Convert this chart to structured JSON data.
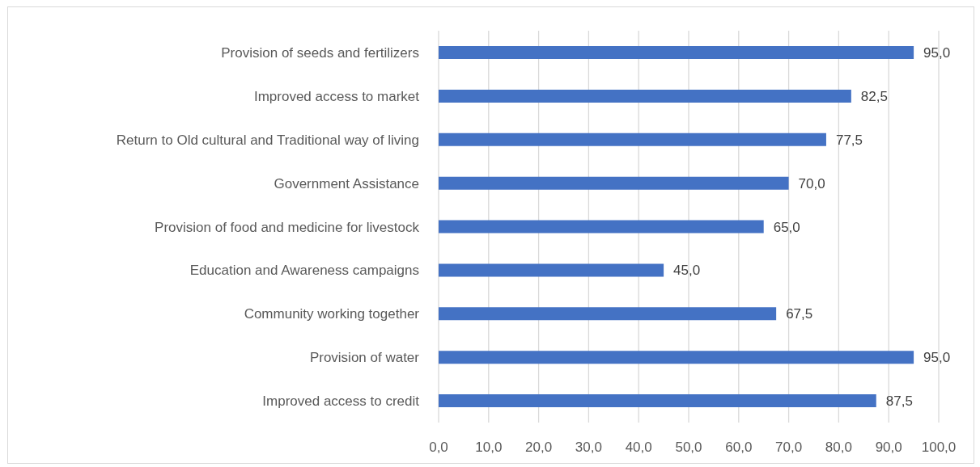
{
  "chart_data": {
    "type": "bar",
    "orientation": "horizontal",
    "categories": [
      "Provision of seeds and fertilizers",
      "Improved access to market",
      "Return to Old cultural and Traditional way of living",
      "Government Assistance",
      "Provision of food and medicine for livestock",
      "Education and Awareness campaigns",
      "Community working together",
      "Provision of water",
      "Improved access to credit"
    ],
    "values": [
      95,
      82.5,
      77.5,
      70,
      65,
      45,
      67.5,
      95,
      87.5
    ],
    "value_labels": [
      "95,0",
      "82,5",
      "77,5",
      "70,0",
      "65,0",
      "45,0",
      "67,5",
      "95,0",
      "87,5"
    ],
    "color": "#4472c4",
    "xlim": [
      0,
      100
    ],
    "xticks": [
      {
        "value": 0,
        "label": "0,0"
      },
      {
        "value": 10,
        "label": "10,0"
      },
      {
        "value": 20,
        "label": "20,0"
      },
      {
        "value": 30,
        "label": "30,0"
      },
      {
        "value": 40,
        "label": "40,0"
      },
      {
        "value": 50,
        "label": "50,0"
      },
      {
        "value": 60,
        "label": "60,0"
      },
      {
        "value": 70,
        "label": "70,0"
      },
      {
        "value": 80,
        "label": "80,0"
      },
      {
        "value": 90,
        "label": "90,0"
      },
      {
        "value": 100,
        "label": "100,0"
      }
    ],
    "grid": "x"
  }
}
